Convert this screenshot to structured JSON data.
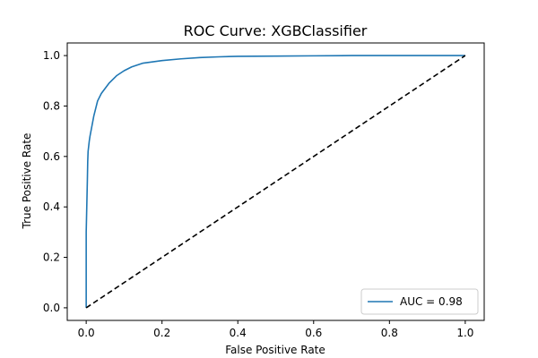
{
  "chart_data": {
    "type": "line",
    "title": "ROC Curve: XGBClassifier",
    "xlabel": "False Positive Rate",
    "ylabel": "True Positive Rate",
    "xlim": [
      -0.05,
      1.05
    ],
    "ylim": [
      -0.05,
      1.05
    ],
    "x_ticks": [
      0.0,
      0.2,
      0.4,
      0.6,
      0.8,
      1.0
    ],
    "y_ticks": [
      0.0,
      0.2,
      0.4,
      0.6,
      0.8,
      1.0
    ],
    "x_tick_labels": [
      "0.0",
      "0.2",
      "0.4",
      "0.6",
      "0.8",
      "1.0"
    ],
    "y_tick_labels": [
      "0.0",
      "0.2",
      "0.4",
      "0.6",
      "0.8",
      "1.0"
    ],
    "grid": false,
    "legend_position": "lower-right",
    "series": [
      {
        "name": "AUC = 0.98",
        "color": "#1f77b4",
        "style": "solid",
        "x": [
          0.0,
          0.0,
          0.003,
          0.004,
          0.005,
          0.008,
          0.01,
          0.015,
          0.02,
          0.025,
          0.03,
          0.04,
          0.05,
          0.06,
          0.08,
          0.1,
          0.12,
          0.15,
          0.2,
          0.25,
          0.3,
          0.35,
          0.4,
          0.5,
          0.6,
          0.7,
          0.8,
          0.9,
          1.0
        ],
        "y": [
          0.0,
          0.3,
          0.5,
          0.58,
          0.62,
          0.66,
          0.68,
          0.72,
          0.76,
          0.79,
          0.82,
          0.85,
          0.87,
          0.89,
          0.92,
          0.94,
          0.955,
          0.97,
          0.98,
          0.987,
          0.992,
          0.995,
          0.997,
          0.998,
          0.999,
          1.0,
          1.0,
          1.0,
          1.0
        ]
      },
      {
        "color": "#000000",
        "style": "dashed",
        "x": [
          0.0,
          1.0
        ],
        "y": [
          0.0,
          1.0
        ]
      }
    ],
    "legend": {
      "label": "AUC = 0.98"
    }
  }
}
